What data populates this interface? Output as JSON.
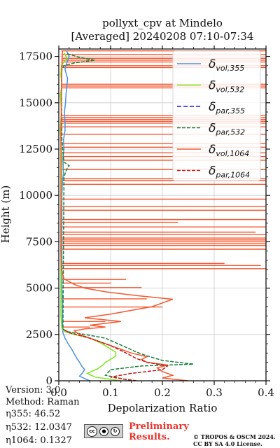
{
  "chart_data": {
    "type": "line",
    "title_line1": "pollyxt_cpv at Mindelo",
    "title_line2": "[Averaged] 20240208 07:10-07:34",
    "xlabel": "Depolarization Ratio",
    "ylabel": "Height (m)",
    "xlim": [
      0,
      0.4
    ],
    "ylim": [
      0,
      17900
    ],
    "xticks": [
      "0.0",
      "0.1",
      "0.2",
      "0.3",
      "0.4"
    ],
    "yticks": [
      "0",
      "2500",
      "5000",
      "7500",
      "10000",
      "12500",
      "15000",
      "17500"
    ],
    "grid": true,
    "legend_position": "top-right",
    "series": [
      {
        "name": "δvol,355",
        "legend_main": "δ",
        "legend_sub": "vol,355",
        "color": "#4a90e2",
        "dash": "solid",
        "points": [
          [
            0.06,
            0
          ],
          [
            0.05,
            120
          ],
          [
            0.04,
            250
          ],
          [
            0.045,
            400
          ],
          [
            0.05,
            600
          ],
          [
            0.044,
            800
          ],
          [
            0.04,
            1000
          ],
          [
            0.035,
            1200
          ],
          [
            0.03,
            1450
          ],
          [
            0.025,
            1700
          ],
          [
            0.018,
            2000
          ],
          [
            0.012,
            2300
          ],
          [
            0.008,
            2600
          ],
          [
            0.007,
            3000
          ],
          [
            0.007,
            4000
          ],
          [
            0.006,
            5000
          ],
          [
            0.006,
            6000
          ],
          [
            0.006,
            7000
          ],
          [
            0.006,
            8000
          ],
          [
            0.006,
            9000
          ],
          [
            0.006,
            10000
          ],
          [
            0.007,
            10700
          ],
          [
            0.009,
            11200
          ],
          [
            0.008,
            12000
          ],
          [
            0.01,
            12500
          ],
          [
            0.009,
            13000
          ],
          [
            0.012,
            13500
          ],
          [
            0.012,
            14000
          ],
          [
            0.011,
            14500
          ],
          [
            0.013,
            15000
          ],
          [
            0.014,
            15500
          ],
          [
            0.016,
            16000
          ],
          [
            0.017,
            16300
          ],
          [
            0.012,
            16800
          ],
          [
            0.016,
            17200
          ],
          [
            0.02,
            17500
          ],
          [
            0.015,
            17800
          ]
        ]
      },
      {
        "name": "δvol,532",
        "legend_main": "δ",
        "legend_sub": "vol,532",
        "color": "#7fe61e",
        "dash": "solid",
        "points": [
          [
            0.12,
            0
          ],
          [
            0.07,
            200
          ],
          [
            0.055,
            400
          ],
          [
            0.075,
            650
          ],
          [
            0.085,
            850
          ],
          [
            0.09,
            1000
          ],
          [
            0.1,
            1150
          ],
          [
            0.11,
            1350
          ],
          [
            0.11,
            1550
          ],
          [
            0.095,
            1800
          ],
          [
            0.08,
            2050
          ],
          [
            0.06,
            2300
          ],
          [
            0.03,
            2500
          ],
          [
            0.012,
            2650
          ],
          [
            0.006,
            2800
          ],
          [
            0.004,
            3500
          ],
          [
            0.004,
            5000
          ],
          [
            0.004,
            7000
          ],
          [
            0.004,
            9000
          ],
          [
            0.005,
            10500
          ],
          [
            0.006,
            11200
          ],
          [
            0.006,
            12000
          ],
          [
            0.004,
            13000
          ],
          [
            0.003,
            13600
          ],
          [
            0.005,
            14500
          ],
          [
            0.004,
            15000
          ],
          [
            0.003,
            15400
          ],
          [
            0.006,
            16000
          ],
          [
            0.004,
            16500
          ],
          [
            0.005,
            17000
          ],
          [
            0.01,
            17200
          ],
          [
            0.016,
            17400
          ],
          [
            0.01,
            17700
          ]
        ]
      },
      {
        "name": "δpar,355",
        "legend_main": "δ",
        "legend_sub": "par,355",
        "color": "#1a1adc",
        "dash": "6,3",
        "points": []
      },
      {
        "name": "δpar,532",
        "legend_main": "δ",
        "legend_sub": "par,532",
        "color": "#17803a",
        "dash": "5,2",
        "points": [
          [
            0.14,
            0
          ],
          [
            0.09,
            300
          ],
          [
            0.1,
            600
          ],
          [
            0.16,
            800
          ],
          [
            0.26,
            900
          ],
          [
            0.2,
            1100
          ],
          [
            0.17,
            1350
          ],
          [
            0.15,
            1550
          ],
          [
            0.13,
            1800
          ],
          [
            0.11,
            2050
          ],
          [
            0.09,
            2300
          ],
          [
            0.05,
            2500
          ],
          [
            0.016,
            2650
          ],
          [
            0.008,
            2800
          ],
          [
            0.01,
            11000
          ],
          [
            0.015,
            11400
          ],
          [
            0.02,
            11600
          ],
          [
            0.01,
            11800
          ],
          [
            0.006,
            13000
          ],
          [
            0.005,
            16000
          ],
          [
            0.006,
            16800
          ],
          [
            0.01,
            17000
          ],
          [
            0.03,
            17150
          ],
          [
            0.07,
            17300
          ],
          [
            0.04,
            17450
          ],
          [
            0.015,
            17650
          ]
        ]
      },
      {
        "name": "δvol,1064",
        "legend_main": "δ",
        "legend_sub": "vol,1064",
        "color": "#f4582f",
        "dash": "solid",
        "points": [
          [
            0.25,
            0
          ],
          [
            0.2,
            150
          ],
          [
            0.22,
            300
          ],
          [
            0.2,
            500
          ],
          [
            0.19,
            700
          ],
          [
            0.21,
            850
          ],
          [
            0.17,
            1000
          ],
          [
            0.16,
            1150
          ],
          [
            0.17,
            1300
          ],
          [
            0.14,
            1500
          ],
          [
            0.12,
            1700
          ],
          [
            0.1,
            1900
          ],
          [
            0.08,
            2100
          ],
          [
            0.06,
            2300
          ],
          [
            0.04,
            2500
          ],
          [
            0.03,
            2700
          ],
          [
            0.05,
            2800
          ],
          [
            0.09,
            2900
          ],
          [
            0.06,
            3000
          ],
          [
            0.12,
            3200
          ],
          [
            0.05,
            3400
          ],
          [
            0.1,
            3600
          ],
          [
            0.14,
            3800
          ],
          [
            0.18,
            4000
          ],
          [
            0.2,
            4200
          ],
          [
            0.22,
            4400
          ],
          [
            0.15,
            4600
          ],
          [
            0.09,
            4800
          ],
          [
            0.05,
            5000
          ],
          [
            0.03,
            5200
          ],
          [
            0.01,
            5500
          ],
          [
            0.005,
            6000
          ],
          [
            0.004,
            7000
          ],
          [
            0.004,
            9000
          ],
          [
            0.004,
            11000
          ],
          [
            0.004,
            13000
          ],
          [
            0.005,
            15000
          ],
          [
            0.006,
            17000
          ],
          [
            0.007,
            17800
          ]
        ]
      },
      {
        "name": "δpar,1064",
        "legend_main": "δ",
        "legend_sub": "par,1064",
        "color": "#c01a1a",
        "dash": "5,2",
        "points": [
          [
            0.15,
            0
          ],
          [
            0.1,
            200
          ],
          [
            0.14,
            400
          ],
          [
            0.2,
            600
          ],
          [
            0.21,
            800
          ],
          [
            0.17,
            1000
          ],
          [
            0.15,
            1200
          ],
          [
            0.13,
            1500
          ],
          [
            0.1,
            1900
          ],
          [
            0.06,
            2300
          ],
          [
            0.02,
            2600
          ],
          [
            0.008,
            2800
          ]
        ]
      }
    ],
    "spikes_1064": {
      "color": "#f4582f",
      "lines": [
        [
          5030,
          0.16
        ],
        [
          5270,
          0.1
        ],
        [
          5470,
          0.13
        ],
        [
          3980,
          0.2
        ],
        [
          4420,
          0.17
        ],
        [
          3200,
          0.09
        ],
        [
          2900,
          0.06
        ],
        [
          6050,
          0.4
        ],
        [
          7100,
          0.4
        ],
        [
          7300,
          0.4
        ],
        [
          7400,
          0.4
        ],
        [
          7500,
          0.4
        ],
        [
          7600,
          0.4
        ],
        [
          7700,
          0.4
        ],
        [
          7900,
          0.4
        ],
        [
          8300,
          0.4
        ],
        [
          8700,
          0.4
        ],
        [
          9200,
          0.4
        ],
        [
          9400,
          0.4
        ],
        [
          9800,
          0.4
        ],
        [
          10600,
          0.4
        ],
        [
          10800,
          0.4
        ],
        [
          10900,
          0.4
        ],
        [
          11400,
          0.4
        ],
        [
          11900,
          0.4
        ],
        [
          12100,
          0.4
        ],
        [
          12300,
          0.4
        ],
        [
          12600,
          0.4
        ],
        [
          12800,
          0.4
        ],
        [
          13300,
          0.4
        ],
        [
          13700,
          0.4
        ],
        [
          13900,
          0.4
        ],
        [
          14000,
          0.4
        ],
        [
          14100,
          0.4
        ],
        [
          14200,
          0.4
        ],
        [
          14300,
          0.4
        ],
        [
          15800,
          0.4
        ],
        [
          15900,
          0.4
        ],
        [
          16000,
          0.4
        ],
        [
          16900,
          0.4
        ],
        [
          17000,
          0.4
        ],
        [
          17200,
          0.4
        ],
        [
          17300,
          0.4
        ],
        [
          17400,
          0.4
        ],
        [
          17600,
          0.4
        ],
        [
          17800,
          0.4
        ],
        [
          6220,
          0.39
        ],
        [
          6330,
          0.32
        ],
        [
          8020,
          0.38
        ],
        [
          8550,
          0.23
        ]
      ]
    }
  },
  "info": {
    "version": "Version: 3.0",
    "method": "Method: Raman",
    "eta355": "η355:  46.52",
    "eta532": "η532: 12.0347",
    "eta1064": "η1064: 0.1327"
  },
  "footer": {
    "preliminary_line1": "Preliminary",
    "preliminary_line2": "Results.",
    "copyright_line1": "© TROPOS & OSCM 2024.",
    "copyright_line2": "CC BY SA 4.0 License.",
    "cc_label": "cc"
  }
}
